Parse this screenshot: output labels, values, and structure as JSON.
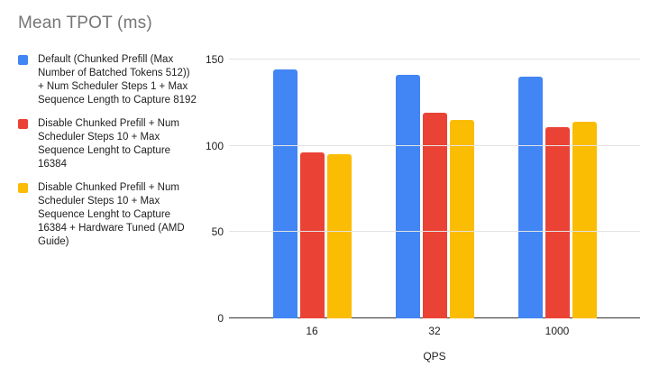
{
  "title": "Mean TPOT (ms)",
  "colors": {
    "series_blue": "#4285F4",
    "series_red": "#EA4335",
    "series_yellow": "#FBBC04",
    "gridline": "#e3e3e3",
    "axis_line": "#333333",
    "title_text": "#757575",
    "label_text": "#212121",
    "background": "#ffffff"
  },
  "chart_data": {
    "type": "bar",
    "title": "Mean TPOT (ms)",
    "categories": [
      "16",
      "32",
      "1000"
    ],
    "series": [
      {
        "name": "Default (Chunked Prefill (Max Number of Batched Tokens 512)) + Num Scheduler Steps 1 + Max Sequence Length to Capture 8192",
        "color": "#4285F4",
        "values": [
          144,
          141,
          140
        ]
      },
      {
        "name": "Disable Chunked Prefill + Num Scheduler Steps 10 + Max Sequence Lenght to Capture 16384",
        "color": "#EA4335",
        "values": [
          96,
          119,
          111
        ]
      },
      {
        "name": "Disable Chunked Prefill + Num Scheduler Steps 10 + Max Sequence Lenght to Capture 16384 + Hardware Tuned (AMD Guide)",
        "color": "#FBBC04",
        "values": [
          95,
          115,
          114
        ]
      }
    ],
    "xlabel": "QPS",
    "ylabel": "",
    "ylim": [
      0,
      150
    ],
    "yticks": [
      0,
      50,
      100,
      150
    ],
    "grid": true,
    "legend_position": "left"
  }
}
